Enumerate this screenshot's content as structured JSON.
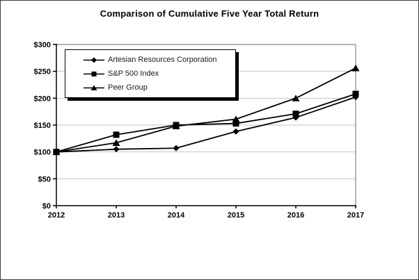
{
  "chart_data": {
    "type": "line",
    "title": "Comparison of Cumulative Five Year Total Return",
    "categories": [
      "2012",
      "2013",
      "2014",
      "2015",
      "2016",
      "2017"
    ],
    "series": [
      {
        "name": "Artesian Resources Corporation",
        "marker": "diamond",
        "color": "#000000",
        "values": [
          100,
          105,
          107,
          138,
          164,
          202
        ]
      },
      {
        "name": "S&P 500 Index",
        "marker": "square",
        "color": "#000000",
        "values": [
          100,
          132,
          150,
          153,
          171,
          208
        ]
      },
      {
        "name": "Peer Group",
        "marker": "triangle",
        "color": "#000000",
        "values": [
          100,
          117,
          148,
          161,
          200,
          256
        ]
      }
    ],
    "ylim": [
      0,
      300
    ],
    "y_tick_step": 50,
    "y_tick_labels": [
      "$0",
      "$50",
      "$100",
      "$150",
      "$200",
      "$250",
      "$300"
    ],
    "xlabel": "",
    "ylabel": "",
    "grid": "horizontal",
    "legend_position": "inside-top-left",
    "colors": {
      "gridline": "#c3c3c3",
      "plot_border": "#848484",
      "axis": "#000000",
      "series": "#000000",
      "background": "#ffffff",
      "outer_border": "#3f3f3f"
    }
  }
}
